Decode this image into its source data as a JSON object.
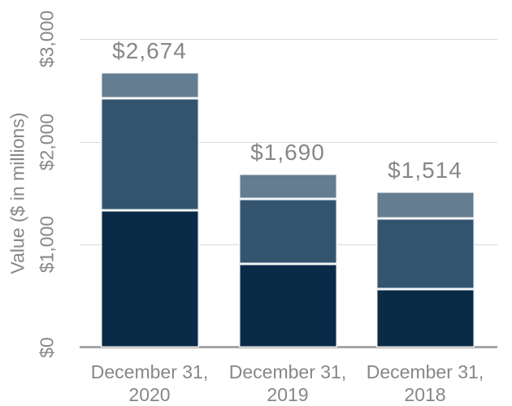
{
  "chart_data": {
    "type": "bar",
    "stacked": true,
    "title": "",
    "xlabel": "",
    "ylabel": "Value ($ in millions)",
    "categories": [
      {
        "line1": "December 31,",
        "line2": "2020"
      },
      {
        "line1": "December 31,",
        "line2": "2019"
      },
      {
        "line1": "December 31,",
        "line2": "2018"
      }
    ],
    "series": [
      {
        "name": "bottom-segment",
        "color": "#0A2B48",
        "values": [
          1333,
          810,
          570
        ]
      },
      {
        "name": "middle-segment",
        "color": "#33546F",
        "values": [
          1089,
          633,
          683
        ]
      },
      {
        "name": "top-segment",
        "color": "#647D90",
        "values": [
          252,
          247,
          261
        ]
      }
    ],
    "totals": [
      2674,
      1690,
      1514
    ],
    "total_labels": [
      "$2,674",
      "$1,690",
      "$1,514"
    ],
    "y_ticks": [
      {
        "value": 0,
        "label": "$0"
      },
      {
        "value": 1000,
        "label": "$1,000"
      },
      {
        "value": 2000,
        "label": "$2,000"
      },
      {
        "value": 3000,
        "label": "$3,000"
      }
    ],
    "ylim": [
      0,
      3000
    ],
    "grid": true,
    "legend": false
  },
  "colors": {
    "label_text": "#878787",
    "axis_line": "#A6A6A6",
    "gridline": "#D9D9D9",
    "segment_separator": "#FFFFFF",
    "background": "#FFFFFF"
  }
}
